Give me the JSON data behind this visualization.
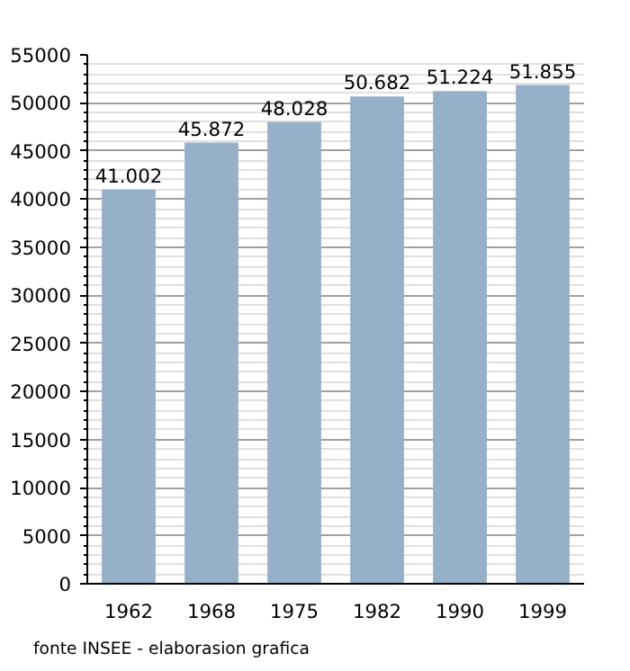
{
  "chart_data": {
    "type": "bar",
    "categories": [
      "1962",
      "1968",
      "1975",
      "1982",
      "1990",
      "1999"
    ],
    "values": [
      41002,
      45872,
      48028,
      50682,
      51224,
      51855
    ],
    "value_labels": [
      "41.002",
      "45.872",
      "48.028",
      "50.682",
      "51.224",
      "51.855"
    ],
    "color": "#97b0c9",
    "ylim": [
      0,
      55000
    ],
    "yticks": [
      0,
      5000,
      10000,
      15000,
      20000,
      25000,
      30000,
      35000,
      40000,
      45000,
      50000,
      55000
    ],
    "grid": "y",
    "annotations": [
      "fonte INSEE - elaborasion grafica"
    ]
  }
}
